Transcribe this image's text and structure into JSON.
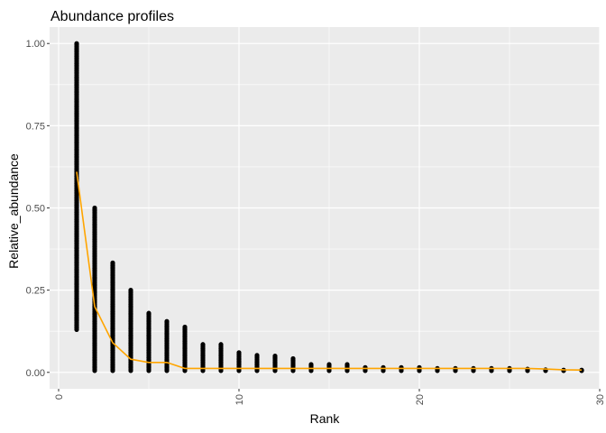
{
  "chart_data": {
    "type": "scatter",
    "title": "Abundance profiles",
    "xlabel": "Rank",
    "ylabel": "Relative_abundance",
    "xlim": [
      -0.5,
      30
    ],
    "ylim": [
      -0.05,
      1.05
    ],
    "x_ticks": [
      0,
      10,
      20,
      30
    ],
    "x_tick_labels": [
      "0",
      "10",
      "20",
      "30"
    ],
    "y_ticks": [
      0,
      0.25,
      0.5,
      0.75,
      1
    ],
    "y_tick_labels": [
      "0.00",
      "0.25",
      "0.50",
      "0.75",
      "1.00"
    ],
    "grid": true,
    "legend": "none",
    "point_color": "#000000",
    "line_color": "#FFA500",
    "panel_background": "#EBEBEB",
    "grid_color": "#FFFFFF",
    "points_range": [
      {
        "rank": 1,
        "min": 0.13,
        "max": 1.0
      },
      {
        "rank": 2,
        "min": 0.005,
        "max": 0.5
      },
      {
        "rank": 3,
        "min": 0.005,
        "max": 0.333
      },
      {
        "rank": 4,
        "min": 0.005,
        "max": 0.25
      },
      {
        "rank": 5,
        "min": 0.005,
        "max": 0.18
      },
      {
        "rank": 6,
        "min": 0.005,
        "max": 0.155
      },
      {
        "rank": 7,
        "min": 0.005,
        "max": 0.138
      },
      {
        "rank": 8,
        "min": 0.005,
        "max": 0.085
      },
      {
        "rank": 9,
        "min": 0.005,
        "max": 0.085
      },
      {
        "rank": 10,
        "min": 0.005,
        "max": 0.06
      },
      {
        "rank": 11,
        "min": 0.005,
        "max": 0.052
      },
      {
        "rank": 12,
        "min": 0.005,
        "max": 0.05
      },
      {
        "rank": 13,
        "min": 0.005,
        "max": 0.042
      },
      {
        "rank": 14,
        "min": 0.005,
        "max": 0.024
      },
      {
        "rank": 15,
        "min": 0.005,
        "max": 0.024
      },
      {
        "rank": 16,
        "min": 0.005,
        "max": 0.024
      },
      {
        "rank": 17,
        "min": 0.005,
        "max": 0.015
      },
      {
        "rank": 18,
        "min": 0.005,
        "max": 0.015
      },
      {
        "rank": 19,
        "min": 0.005,
        "max": 0.015
      },
      {
        "rank": 20,
        "min": 0.005,
        "max": 0.015
      },
      {
        "rank": 21,
        "min": 0.005,
        "max": 0.012
      },
      {
        "rank": 22,
        "min": 0.005,
        "max": 0.012
      },
      {
        "rank": 23,
        "min": 0.005,
        "max": 0.012
      },
      {
        "rank": 24,
        "min": 0.005,
        "max": 0.012
      },
      {
        "rank": 25,
        "min": 0.005,
        "max": 0.012
      },
      {
        "rank": 26,
        "min": 0.005,
        "max": 0.01
      },
      {
        "rank": 27,
        "min": 0.005,
        "max": 0.008
      },
      {
        "rank": 28,
        "min": 0.005,
        "max": 0.007
      },
      {
        "rank": 29,
        "min": 0.005,
        "max": 0.007
      }
    ],
    "mean_line": {
      "x": [
        1,
        2,
        3,
        4,
        5,
        6,
        7,
        8,
        9,
        10,
        11,
        12,
        13,
        14,
        15,
        16,
        17,
        18,
        19,
        20,
        21,
        22,
        23,
        24,
        25,
        26,
        27,
        28,
        29
      ],
      "y": [
        0.61,
        0.2,
        0.09,
        0.04,
        0.03,
        0.03,
        0.012,
        0.012,
        0.012,
        0.012,
        0.012,
        0.012,
        0.012,
        0.012,
        0.012,
        0.012,
        0.012,
        0.012,
        0.012,
        0.012,
        0.012,
        0.012,
        0.012,
        0.012,
        0.012,
        0.012,
        0.01,
        0.008,
        0.007
      ]
    }
  }
}
